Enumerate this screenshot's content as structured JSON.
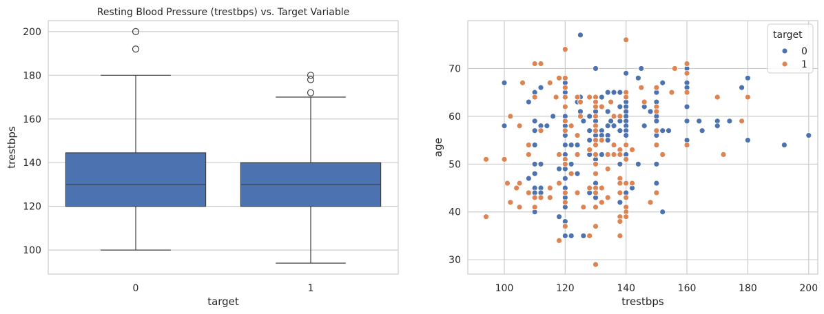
{
  "chart_data": [
    {
      "type": "box",
      "title": "Resting Blood Pressure (trestbps) vs. Target Variable",
      "xlabel": "target",
      "ylabel": "trestbps",
      "categories": [
        "0",
        "1"
      ],
      "ylim": [
        89,
        205
      ],
      "yticks": [
        100,
        120,
        140,
        160,
        180,
        200
      ],
      "grid": true,
      "color": "#4c72b0",
      "boxes": [
        {
          "category": "0",
          "whisker_low": 100,
          "q1": 120,
          "median": 130,
          "q3": 144.5,
          "whisker_high": 180,
          "outliers": [
            192,
            200
          ]
        },
        {
          "category": "1",
          "whisker_low": 94,
          "q1": 120,
          "median": 130,
          "q3": 140,
          "whisker_high": 170,
          "outliers": [
            172,
            178,
            180
          ]
        }
      ]
    },
    {
      "type": "scatter",
      "title": "",
      "xlabel": "trestbps",
      "ylabel": "age",
      "xlim": [
        88,
        203
      ],
      "ylim": [
        27,
        80
      ],
      "xticks": [
        100,
        120,
        140,
        160,
        180,
        200
      ],
      "yticks": [
        30,
        40,
        50,
        60,
        70
      ],
      "grid": true,
      "legend": {
        "title": "target",
        "position": "top-right"
      },
      "series": [
        {
          "name": "0",
          "color": "#4c72b0",
          "points": [
            [
              100,
              67
            ],
            [
              100,
              58
            ],
            [
              110,
              65
            ],
            [
              110,
              59
            ],
            [
              110,
              57
            ],
            [
              110,
              54
            ],
            [
              110,
              50
            ],
            [
              110,
              48
            ],
            [
              110,
              45
            ],
            [
              110,
              44
            ],
            [
              110,
              41
            ],
            [
              110,
              40
            ],
            [
              112,
              66
            ],
            [
              112,
              58
            ],
            [
              112,
              50
            ],
            [
              112,
              45
            ],
            [
              112,
              44
            ],
            [
              114,
              58
            ],
            [
              108,
              63
            ],
            [
              108,
              47
            ],
            [
              108,
              44
            ],
            [
              116,
              60
            ],
            [
              118,
              49
            ],
            [
              118,
              39
            ],
            [
              120,
              67
            ],
            [
              120,
              65
            ],
            [
              120,
              62
            ],
            [
              120,
              60
            ],
            [
              120,
              58
            ],
            [
              120,
              56
            ],
            [
              120,
              54
            ],
            [
              120,
              52
            ],
            [
              120,
              49
            ],
            [
              120,
              47
            ],
            [
              120,
              45
            ],
            [
              120,
              43
            ],
            [
              120,
              41
            ],
            [
              120,
              38
            ],
            [
              120,
              35
            ],
            [
              122,
              54
            ],
            [
              122,
              50
            ],
            [
              122,
              35
            ],
            [
              124,
              63
            ],
            [
              124,
              54
            ],
            [
              124,
              48
            ],
            [
              125,
              77
            ],
            [
              125,
              64
            ],
            [
              125,
              61
            ],
            [
              126,
              59
            ],
            [
              126,
              35
            ],
            [
              128,
              57
            ],
            [
              128,
              55
            ],
            [
              128,
              52
            ],
            [
              128,
              44
            ],
            [
              128,
              60
            ],
            [
              130,
              70
            ],
            [
              130,
              63
            ],
            [
              130,
              62
            ],
            [
              130,
              61
            ],
            [
              130,
              59
            ],
            [
              130,
              58
            ],
            [
              130,
              56
            ],
            [
              130,
              54
            ],
            [
              130,
              52
            ],
            [
              130,
              51
            ],
            [
              130,
              50
            ],
            [
              130,
              48
            ],
            [
              130,
              46
            ],
            [
              130,
              43
            ],
            [
              132,
              64
            ],
            [
              132,
              57
            ],
            [
              132,
              56
            ],
            [
              132,
              52
            ],
            [
              134,
              61
            ],
            [
              134,
              58
            ],
            [
              134,
              56
            ],
            [
              134,
              55
            ],
            [
              134,
              65
            ],
            [
              135,
              59
            ],
            [
              136,
              65
            ],
            [
              136,
              58
            ],
            [
              138,
              65
            ],
            [
              138,
              62
            ],
            [
              138,
              59
            ],
            [
              138,
              57
            ],
            [
              138,
              52
            ],
            [
              138,
              50
            ],
            [
              138,
              42
            ],
            [
              140,
              69
            ],
            [
              140,
              65
            ],
            [
              140,
              63
            ],
            [
              140,
              62
            ],
            [
              140,
              61
            ],
            [
              140,
              60
            ],
            [
              140,
              59
            ],
            [
              140,
              58
            ],
            [
              140,
              57
            ],
            [
              140,
              56
            ],
            [
              140,
              54
            ],
            [
              140,
              52
            ],
            [
              140,
              51
            ],
            [
              140,
              44
            ],
            [
              142,
              45
            ],
            [
              144,
              50
            ],
            [
              144,
              68
            ],
            [
              145,
              70
            ],
            [
              146,
              58
            ],
            [
              146,
              62
            ],
            [
              148,
              61
            ],
            [
              150,
              65
            ],
            [
              150,
              63
            ],
            [
              150,
              60
            ],
            [
              150,
              59
            ],
            [
              150,
              56
            ],
            [
              150,
              50
            ],
            [
              150,
              46
            ],
            [
              152,
              67
            ],
            [
              152,
              57
            ],
            [
              152,
              40
            ],
            [
              154,
              57
            ],
            [
              160,
              70
            ],
            [
              160,
              67
            ],
            [
              160,
              66
            ],
            [
              160,
              65
            ],
            [
              160,
              62
            ],
            [
              160,
              59
            ],
            [
              160,
              55
            ],
            [
              164,
              59
            ],
            [
              165,
              57
            ],
            [
              170,
              59
            ],
            [
              170,
              58
            ],
            [
              174,
              59
            ],
            [
              178,
              66
            ],
            [
              180,
              68
            ],
            [
              180,
              55
            ],
            [
              192,
              54
            ],
            [
              200,
              56
            ]
          ]
        },
        {
          "name": "1",
          "color": "#dd8452",
          "points": [
            [
              94,
              51
            ],
            [
              94,
              39
            ],
            [
              100,
              51
            ],
            [
              101,
              46
            ],
            [
              102,
              60
            ],
            [
              102,
              42
            ],
            [
              104,
              45
            ],
            [
              105,
              58
            ],
            [
              105,
              46
            ],
            [
              105,
              41
            ],
            [
              106,
              67
            ],
            [
              108,
              54
            ],
            [
              108,
              52
            ],
            [
              108,
              44
            ],
            [
              110,
              71
            ],
            [
              110,
              64
            ],
            [
              110,
              43
            ],
            [
              110,
              41
            ],
            [
              112,
              71
            ],
            [
              112,
              57
            ],
            [
              112,
              43
            ],
            [
              115,
              67
            ],
            [
              115,
              45
            ],
            [
              115,
              43
            ],
            [
              117,
              64
            ],
            [
              118,
              68
            ],
            [
              118,
              52
            ],
            [
              118,
              46
            ],
            [
              118,
              34
            ],
            [
              120,
              74
            ],
            [
              120,
              68
            ],
            [
              120,
              66
            ],
            [
              120,
              64
            ],
            [
              120,
              62
            ],
            [
              120,
              59
            ],
            [
              120,
              57
            ],
            [
              120,
              51
            ],
            [
              120,
              50
            ],
            [
              120,
              44
            ],
            [
              120,
              42
            ],
            [
              120,
              37
            ],
            [
              122,
              58
            ],
            [
              122,
              48
            ],
            [
              124,
              64
            ],
            [
              124,
              56
            ],
            [
              124,
              52
            ],
            [
              124,
              44
            ],
            [
              125,
              63
            ],
            [
              125,
              60
            ],
            [
              126,
              41
            ],
            [
              128,
              64
            ],
            [
              128,
              53
            ],
            [
              128,
              45
            ],
            [
              128,
              35
            ],
            [
              130,
              64
            ],
            [
              130,
              63
            ],
            [
              130,
              62
            ],
            [
              130,
              60
            ],
            [
              130,
              58
            ],
            [
              130,
              57
            ],
            [
              130,
              55
            ],
            [
              130,
              54
            ],
            [
              130,
              52
            ],
            [
              130,
              50
            ],
            [
              130,
              48
            ],
            [
              130,
              45
            ],
            [
              130,
              44
            ],
            [
              130,
              41
            ],
            [
              130,
              37
            ],
            [
              130,
              29
            ],
            [
              132,
              62
            ],
            [
              132,
              55
            ],
            [
              132,
              45
            ],
            [
              132,
              42
            ],
            [
              134,
              52
            ],
            [
              134,
              49
            ],
            [
              134,
              43
            ],
            [
              135,
              63
            ],
            [
              136,
              60
            ],
            [
              136,
              54
            ],
            [
              136,
              52
            ],
            [
              138,
              60
            ],
            [
              138,
              53
            ],
            [
              138,
              52
            ],
            [
              138,
              47
            ],
            [
              138,
              46
            ],
            [
              138,
              44
            ],
            [
              138,
              39
            ],
            [
              138,
              38
            ],
            [
              138,
              35
            ],
            [
              140,
              76
            ],
            [
              140,
              65
            ],
            [
              140,
              64
            ],
            [
              140,
              54
            ],
            [
              140,
              51
            ],
            [
              140,
              46
            ],
            [
              140,
              43
            ],
            [
              140,
              41
            ],
            [
              140,
              40
            ],
            [
              140,
              39
            ],
            [
              142,
              53
            ],
            [
              142,
              46
            ],
            [
              145,
              66
            ],
            [
              146,
              63
            ],
            [
              148,
              42
            ],
            [
              150,
              66
            ],
            [
              150,
              62
            ],
            [
              150,
              61
            ],
            [
              150,
              57
            ],
            [
              150,
              54
            ],
            [
              150,
              44
            ],
            [
              152,
              52
            ],
            [
              155,
              65
            ],
            [
              156,
              70
            ],
            [
              160,
              71
            ],
            [
              160,
              69
            ],
            [
              160,
              65
            ],
            [
              160,
              54
            ],
            [
              170,
              64
            ],
            [
              172,
              52
            ],
            [
              178,
              59
            ],
            [
              180,
              64
            ]
          ]
        }
      ]
    }
  ]
}
